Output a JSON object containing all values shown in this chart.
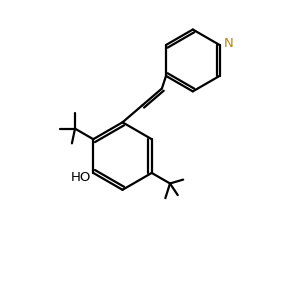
{
  "bg_color": "#ffffff",
  "line_color": "#000000",
  "n_color": "#b8860b",
  "line_width": 1.6,
  "figsize": [
    2.9,
    2.84
  ],
  "dpi": 100,
  "xlim": [
    0,
    10
  ],
  "ylim": [
    0,
    10
  ]
}
